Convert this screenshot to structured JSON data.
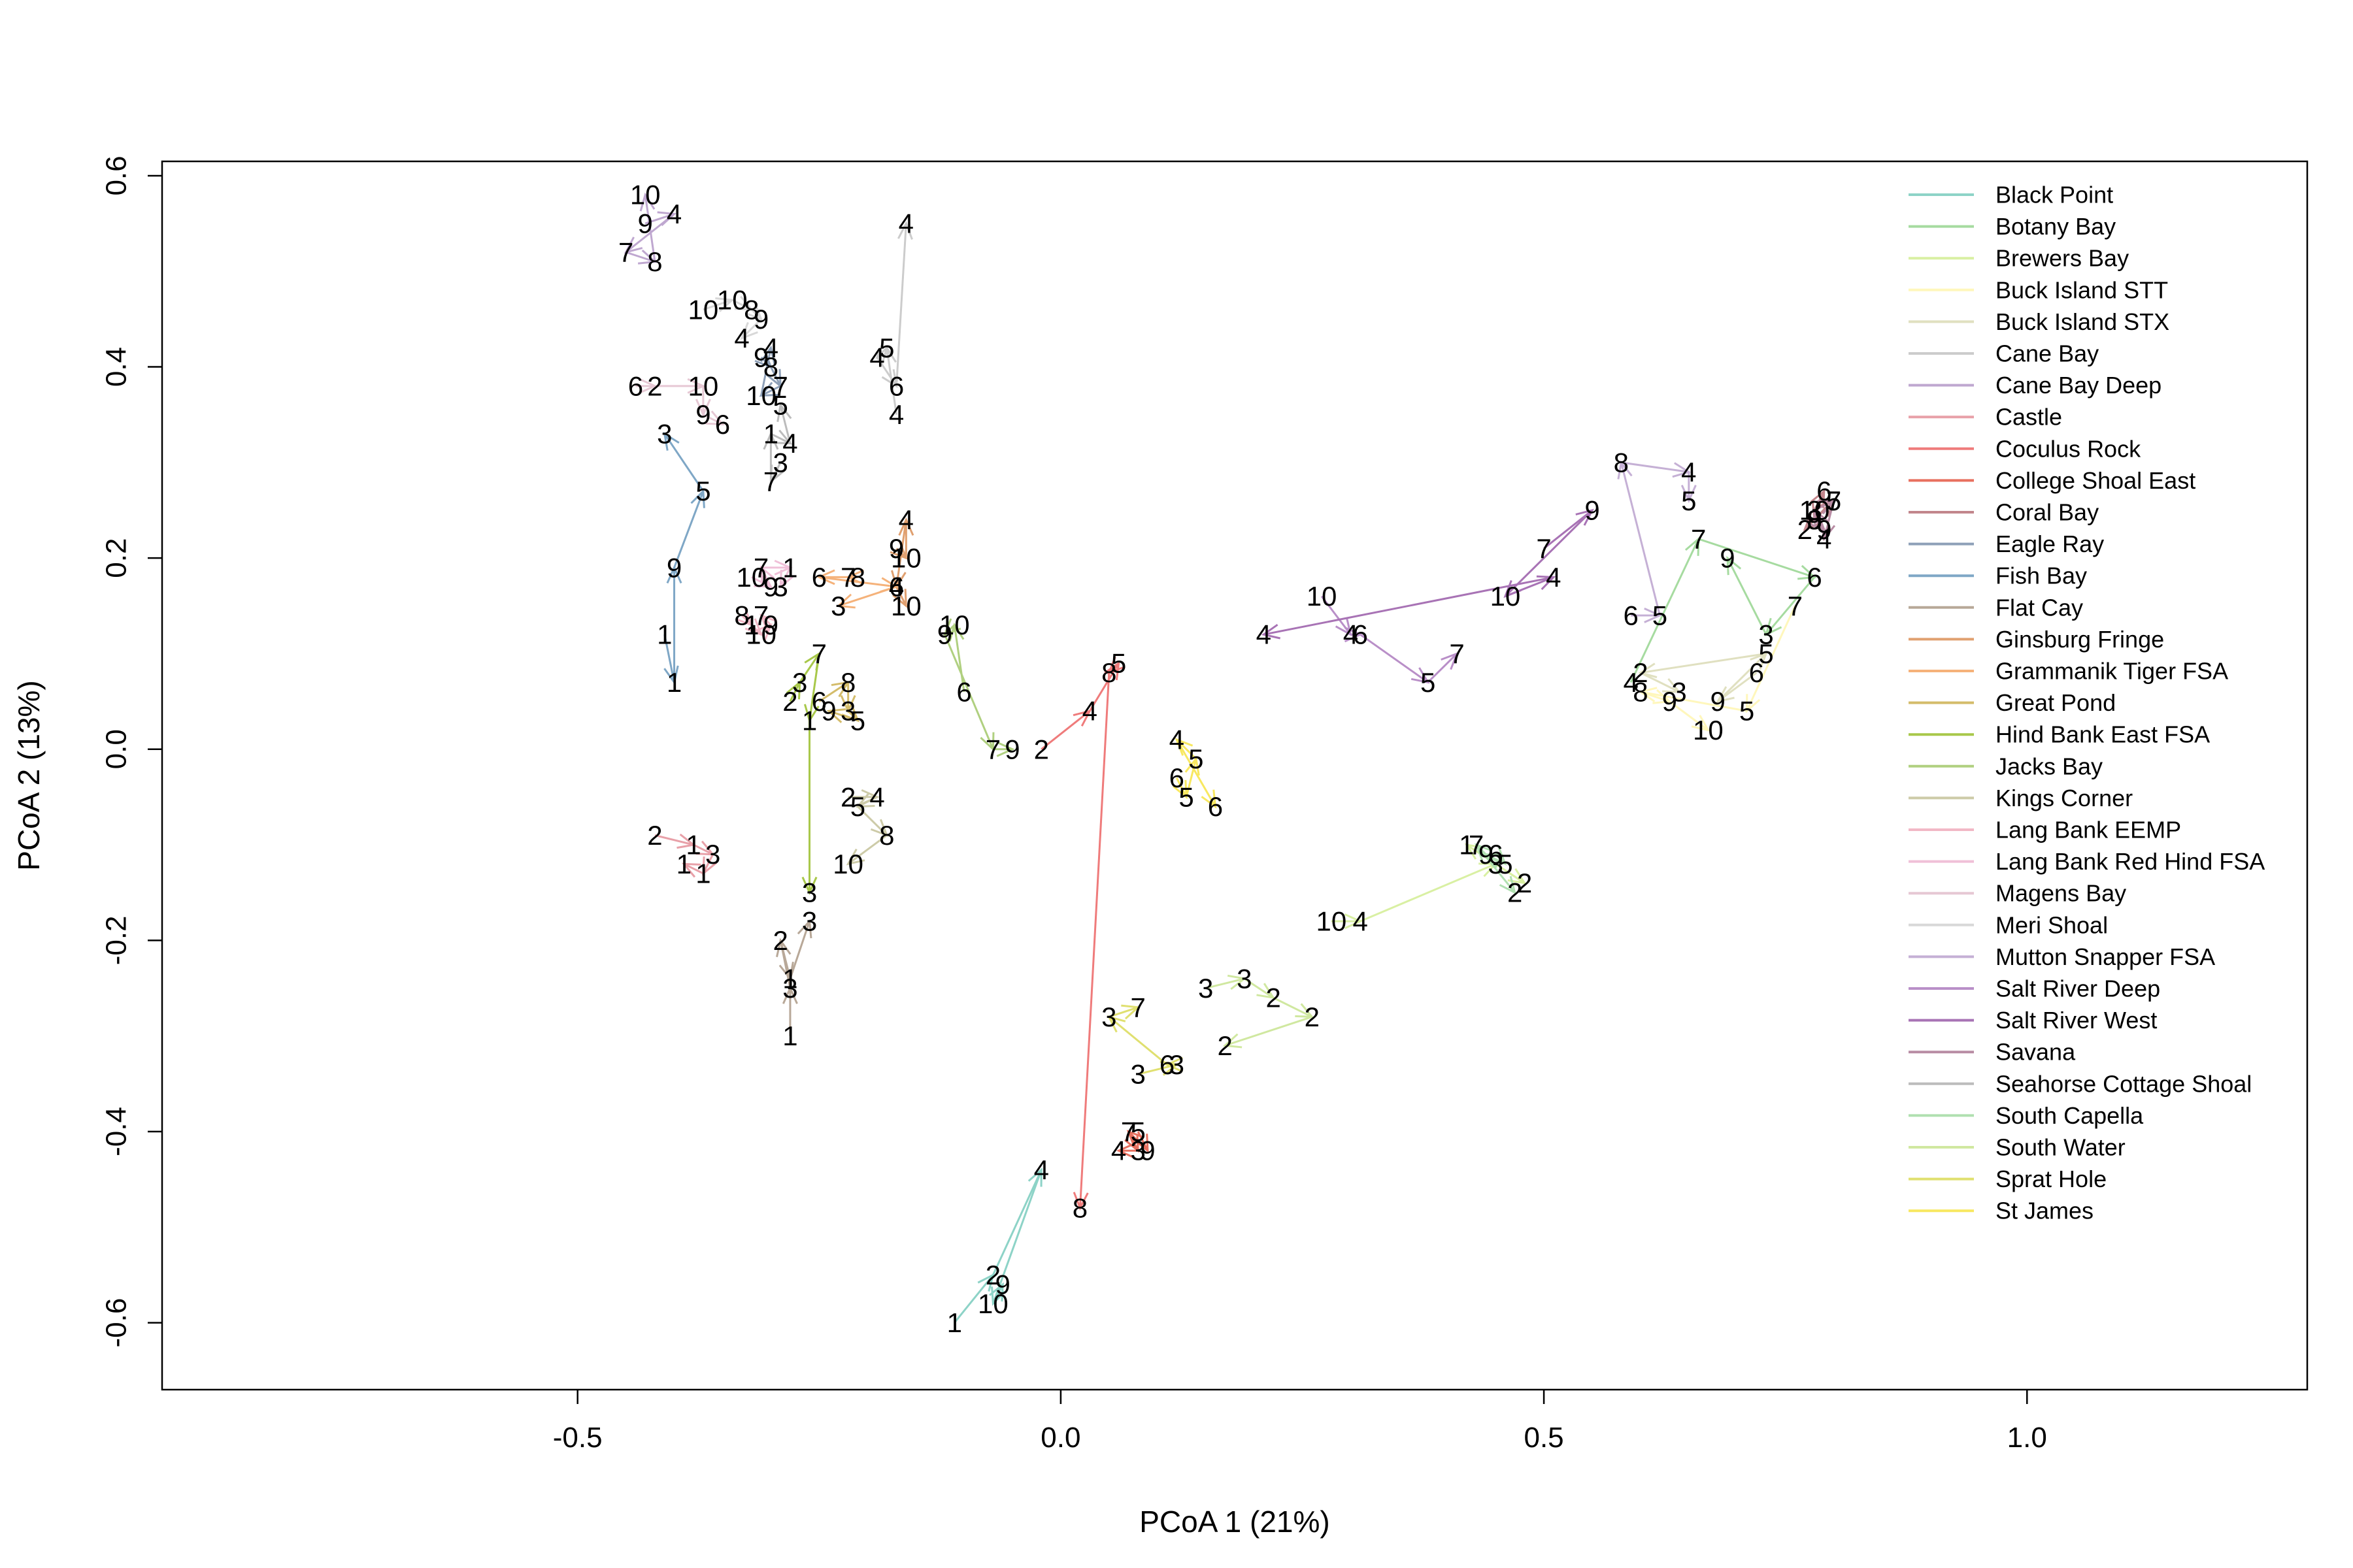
{
  "chart_data": {
    "type": "scatter",
    "title": "",
    "xlabel": "PCoA 1 (21%)",
    "ylabel": "PCoA 2 (13%)",
    "xlim": [
      -0.93,
      1.29
    ],
    "ylim": [
      -0.67,
      0.615
    ],
    "xticks": [
      -0.5,
      0.0,
      0.5,
      1.0
    ],
    "yticks": [
      -0.6,
      -0.4,
      -0.2,
      0.0,
      0.2,
      0.4,
      0.6
    ],
    "xtick_labels": [
      "-0.5",
      "0.0",
      "0.5",
      "1.0"
    ],
    "ytick_labels": [
      "-0.6",
      "-0.4",
      "-0.2",
      "0.0",
      "0.2",
      "0.4",
      "0.6"
    ],
    "grid": false,
    "legend_position": "top-right",
    "series": [
      {
        "name": "Black Point",
        "color": "#8dd3c7",
        "points": [
          [
            -0.11,
            -0.6,
            "1"
          ],
          [
            -0.07,
            -0.55,
            "2"
          ],
          [
            -0.02,
            -0.44,
            "4"
          ],
          [
            -0.07,
            -0.58,
            "10"
          ],
          [
            -0.06,
            -0.56,
            "9"
          ]
        ]
      },
      {
        "name": "Botany Bay",
        "color": "#a6dba0",
        "points": [
          [
            0.59,
            0.07,
            "4"
          ],
          [
            0.66,
            0.22,
            "7"
          ],
          [
            0.78,
            0.18,
            "6"
          ],
          [
            0.73,
            0.12,
            "3"
          ],
          [
            0.69,
            0.2,
            "9"
          ]
        ]
      },
      {
        "name": "Brewers Bay",
        "color": "#d9f0a3",
        "points": [
          [
            0.28,
            -0.18,
            "10"
          ],
          [
            0.31,
            -0.18,
            "4"
          ],
          [
            0.45,
            -0.12,
            "3"
          ],
          [
            0.48,
            -0.14,
            "2"
          ],
          [
            0.42,
            -0.1,
            "1"
          ]
        ]
      },
      {
        "name": "Buck Island STT",
        "color": "#fff7bc",
        "points": [
          [
            0.76,
            0.15,
            "7"
          ],
          [
            0.71,
            0.04,
            "5"
          ],
          [
            0.6,
            0.06,
            "8"
          ],
          [
            0.63,
            0.05,
            "9"
          ],
          [
            0.67,
            0.02,
            "10"
          ]
        ]
      },
      {
        "name": "Buck Island STX",
        "color": "#e0e0c0",
        "points": [
          [
            0.72,
            0.08,
            "6"
          ],
          [
            0.68,
            0.05,
            "9"
          ],
          [
            0.73,
            0.1,
            "5"
          ],
          [
            0.6,
            0.08,
            "2"
          ],
          [
            0.64,
            0.06,
            "3"
          ]
        ]
      },
      {
        "name": "Cane Bay",
        "color": "#cccccc",
        "points": [
          [
            -0.17,
            0.35,
            "4"
          ],
          [
            -0.18,
            0.42,
            "5"
          ],
          [
            -0.19,
            0.41,
            "4"
          ],
          [
            -0.17,
            0.38,
            "6"
          ],
          [
            -0.16,
            0.55,
            "4"
          ]
        ]
      },
      {
        "name": "Cane Bay Deep",
        "color": "#bfa7d0",
        "points": [
          [
            -0.43,
            0.55,
            "9"
          ],
          [
            -0.4,
            0.56,
            "4"
          ],
          [
            -0.45,
            0.52,
            "7"
          ],
          [
            -0.42,
            0.51,
            "8"
          ],
          [
            -0.43,
            0.58,
            "10"
          ]
        ]
      },
      {
        "name": "Castle",
        "color": "#e8a0a8",
        "points": [
          [
            -0.42,
            -0.09,
            "2"
          ],
          [
            -0.38,
            -0.1,
            "1"
          ],
          [
            -0.36,
            -0.11,
            "3"
          ],
          [
            -0.37,
            -0.13,
            "1"
          ],
          [
            -0.39,
            -0.12,
            "1"
          ]
        ]
      },
      {
        "name": "Coculus Rock",
        "color": "#ef7b7b",
        "points": [
          [
            -0.02,
            0.0,
            "2"
          ],
          [
            0.03,
            0.04,
            "4"
          ],
          [
            0.06,
            0.09,
            "5"
          ],
          [
            0.05,
            0.08,
            "8"
          ],
          [
            0.02,
            -0.48,
            "8"
          ]
        ]
      },
      {
        "name": "College Shoal East",
        "color": "#e8705f",
        "points": [
          [
            0.08,
            -0.4,
            "5"
          ],
          [
            0.09,
            -0.42,
            "9"
          ],
          [
            0.07,
            -0.4,
            "7"
          ],
          [
            0.08,
            -0.42,
            "3"
          ],
          [
            0.06,
            -0.42,
            "4"
          ]
        ]
      },
      {
        "name": "Coral Bay",
        "color": "#c2868c",
        "points": [
          [
            0.78,
            0.25,
            "3"
          ],
          [
            0.79,
            0.27,
            "6"
          ],
          [
            0.78,
            0.24,
            "9"
          ],
          [
            0.77,
            0.23,
            "2"
          ],
          [
            0.8,
            0.26,
            "7"
          ]
        ]
      },
      {
        "name": "Eagle Ray",
        "color": "#8ea0b8",
        "points": [
          [
            -0.31,
            0.41,
            "9"
          ],
          [
            -0.3,
            0.4,
            "8"
          ],
          [
            -0.29,
            0.38,
            "7"
          ],
          [
            -0.31,
            0.37,
            "10"
          ],
          [
            -0.3,
            0.42,
            "4"
          ]
        ]
      },
      {
        "name": "Fish Bay",
        "color": "#7fa7c6",
        "points": [
          [
            -0.41,
            0.12,
            "1"
          ],
          [
            -0.4,
            0.07,
            "1"
          ],
          [
            -0.4,
            0.19,
            "9"
          ],
          [
            -0.37,
            0.27,
            "5"
          ],
          [
            -0.41,
            0.33,
            "3"
          ]
        ]
      },
      {
        "name": "Flat Cay",
        "color": "#b8a898",
        "points": [
          [
            -0.28,
            -0.3,
            "1"
          ],
          [
            -0.28,
            -0.25,
            "3"
          ],
          [
            -0.29,
            -0.2,
            "2"
          ],
          [
            -0.28,
            -0.24,
            "1"
          ],
          [
            -0.26,
            -0.18,
            "3"
          ]
        ]
      },
      {
        "name": "Ginsburg Fringe",
        "color": "#e0a070",
        "points": [
          [
            -0.17,
            0.21,
            "9"
          ],
          [
            -0.16,
            0.2,
            "10"
          ],
          [
            -0.16,
            0.24,
            "4"
          ],
          [
            -0.17,
            0.17,
            "6"
          ],
          [
            -0.16,
            0.15,
            "10"
          ]
        ]
      },
      {
        "name": "Grammanik Tiger FSA",
        "color": "#f5b27a",
        "points": [
          [
            -0.21,
            0.18,
            "8"
          ],
          [
            -0.22,
            0.18,
            "7"
          ],
          [
            -0.25,
            0.18,
            "6"
          ],
          [
            -0.17,
            0.17,
            "4"
          ],
          [
            -0.23,
            0.15,
            "3"
          ]
        ]
      },
      {
        "name": "Great Pond",
        "color": "#d4bc6a",
        "points": [
          [
            -0.25,
            0.05,
            "6"
          ],
          [
            -0.22,
            0.07,
            "8"
          ],
          [
            -0.22,
            0.04,
            "3"
          ],
          [
            -0.21,
            0.03,
            "5"
          ],
          [
            -0.24,
            0.04,
            "9"
          ]
        ]
      },
      {
        "name": "Hind Bank East FSA",
        "color": "#a8c84a",
        "points": [
          [
            -0.28,
            0.05,
            "2"
          ],
          [
            -0.27,
            0.07,
            "3"
          ],
          [
            -0.25,
            0.1,
            "7"
          ],
          [
            -0.26,
            0.03,
            "1"
          ],
          [
            -0.26,
            -0.15,
            "3"
          ]
        ]
      },
      {
        "name": "Jacks Bay",
        "color": "#b0d080",
        "points": [
          [
            -0.1,
            0.06,
            "6"
          ],
          [
            -0.11,
            0.13,
            "10"
          ],
          [
            -0.12,
            0.12,
            "9"
          ],
          [
            -0.07,
            0.0,
            "7"
          ],
          [
            -0.05,
            0.0,
            "9"
          ]
        ]
      },
      {
        "name": "Kings Corner",
        "color": "#cdcba8",
        "points": [
          [
            -0.22,
            -0.05,
            "2"
          ],
          [
            -0.19,
            -0.05,
            "4"
          ],
          [
            -0.21,
            -0.06,
            "5"
          ],
          [
            -0.18,
            -0.09,
            "8"
          ],
          [
            -0.22,
            -0.12,
            "10"
          ]
        ]
      },
      {
        "name": "Lang Bank EEMP",
        "color": "#f2b8c6",
        "points": [
          [
            -0.33,
            0.14,
            "8"
          ],
          [
            -0.32,
            0.13,
            "1"
          ],
          [
            -0.31,
            0.12,
            "10"
          ],
          [
            -0.3,
            0.13,
            "9"
          ],
          [
            -0.31,
            0.14,
            "7"
          ]
        ]
      },
      {
        "name": "Lang Bank Red Hind FSA",
        "color": "#f0c0d8",
        "points": [
          [
            -0.32,
            0.18,
            "10"
          ],
          [
            -0.3,
            0.17,
            "9"
          ],
          [
            -0.31,
            0.19,
            "7"
          ],
          [
            -0.28,
            0.19,
            "1"
          ],
          [
            -0.29,
            0.17,
            "3"
          ]
        ]
      },
      {
        "name": "Magens Bay",
        "color": "#e6c8d4",
        "points": [
          [
            -0.44,
            0.38,
            "6"
          ],
          [
            -0.42,
            0.38,
            "2"
          ],
          [
            -0.37,
            0.38,
            "10"
          ],
          [
            -0.37,
            0.35,
            "9"
          ],
          [
            -0.35,
            0.34,
            "6"
          ]
        ]
      },
      {
        "name": "Meri Shoal",
        "color": "#d8d8d8",
        "points": [
          [
            -0.37,
            0.46,
            "10"
          ],
          [
            -0.34,
            0.47,
            "10"
          ],
          [
            -0.32,
            0.46,
            "8"
          ],
          [
            -0.31,
            0.45,
            "9"
          ],
          [
            -0.33,
            0.43,
            "4"
          ]
        ]
      },
      {
        "name": "Mutton Snapper FSA",
        "color": "#c5b0d5",
        "points": [
          [
            0.59,
            0.14,
            "6"
          ],
          [
            0.62,
            0.14,
            "5"
          ],
          [
            0.58,
            0.3,
            "8"
          ],
          [
            0.65,
            0.29,
            "4"
          ],
          [
            0.65,
            0.26,
            "5"
          ]
        ]
      },
      {
        "name": "Salt River Deep",
        "color": "#b98fc8",
        "points": [
          [
            0.27,
            0.16,
            "10"
          ],
          [
            0.3,
            0.12,
            "4"
          ],
          [
            0.31,
            0.12,
            "6"
          ],
          [
            0.38,
            0.07,
            "5"
          ],
          [
            0.41,
            0.1,
            "7"
          ]
        ]
      },
      {
        "name": "Salt River West",
        "color": "#a873b5",
        "points": [
          [
            0.5,
            0.21,
            "7"
          ],
          [
            0.55,
            0.25,
            "9"
          ],
          [
            0.46,
            0.16,
            "10"
          ],
          [
            0.51,
            0.18,
            "4"
          ],
          [
            0.21,
            0.12,
            "4"
          ]
        ]
      },
      {
        "name": "Savana",
        "color": "#b88ca4",
        "points": [
          [
            0.78,
            0.24,
            "8"
          ],
          [
            0.79,
            0.23,
            "9"
          ],
          [
            0.78,
            0.25,
            "10"
          ],
          [
            0.8,
            0.26,
            "5"
          ],
          [
            0.79,
            0.22,
            "4"
          ]
        ]
      },
      {
        "name": "Seahorse Cottage Shoal",
        "color": "#bcbcbc",
        "points": [
          [
            -0.29,
            0.3,
            "3"
          ],
          [
            -0.3,
            0.28,
            "7"
          ],
          [
            -0.3,
            0.33,
            "1"
          ],
          [
            -0.28,
            0.32,
            "4"
          ],
          [
            -0.29,
            0.36,
            "5"
          ]
        ]
      },
      {
        "name": "South Capella",
        "color": "#b0e0b0",
        "points": [
          [
            0.45,
            -0.11,
            "6"
          ],
          [
            0.46,
            -0.12,
            "5"
          ],
          [
            0.44,
            -0.11,
            "9"
          ],
          [
            0.43,
            -0.1,
            "7"
          ],
          [
            0.47,
            -0.15,
            "2"
          ]
        ]
      },
      {
        "name": "South Water",
        "color": "#d0e8a0",
        "points": [
          [
            0.15,
            -0.25,
            "3"
          ],
          [
            0.19,
            -0.24,
            "3"
          ],
          [
            0.22,
            -0.26,
            "2"
          ],
          [
            0.26,
            -0.28,
            "2"
          ],
          [
            0.17,
            -0.31,
            "2"
          ]
        ]
      },
      {
        "name": "Sprat Hole",
        "color": "#e0e070",
        "points": [
          [
            0.08,
            -0.34,
            "3"
          ],
          [
            0.12,
            -0.33,
            "3"
          ],
          [
            0.11,
            -0.33,
            "6"
          ],
          [
            0.05,
            -0.28,
            "3"
          ],
          [
            0.08,
            -0.27,
            "7"
          ]
        ]
      },
      {
        "name": "St James",
        "color": "#f8e860",
        "points": [
          [
            0.12,
            -0.03,
            "6"
          ],
          [
            0.13,
            -0.05,
            "5"
          ],
          [
            0.14,
            -0.01,
            "5"
          ],
          [
            0.12,
            0.01,
            "4"
          ],
          [
            0.16,
            -0.06,
            "6"
          ]
        ]
      }
    ]
  }
}
